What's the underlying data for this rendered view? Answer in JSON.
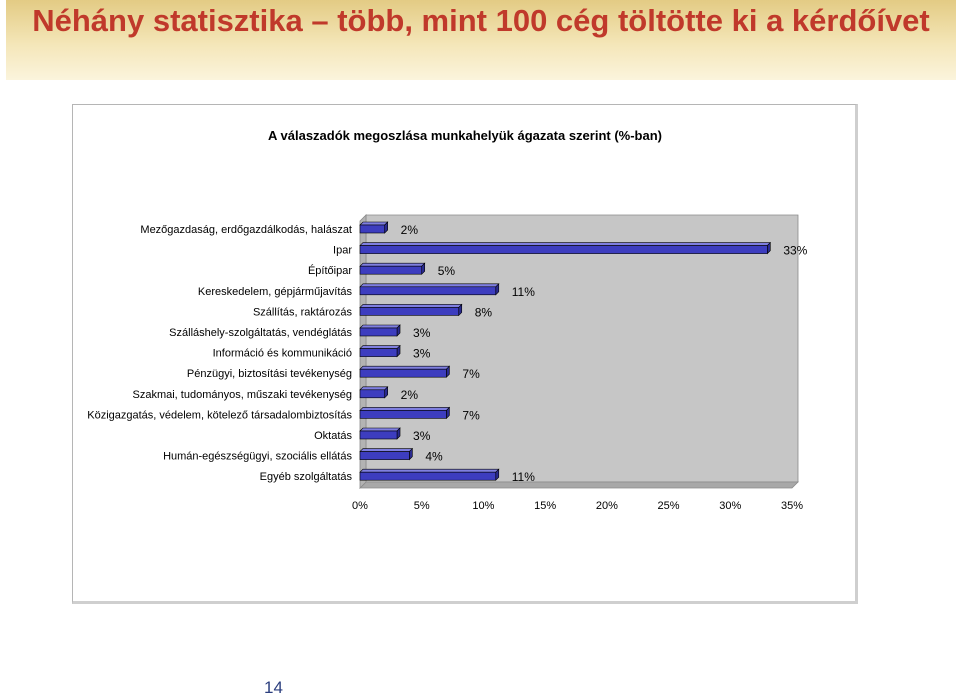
{
  "slide": {
    "title": "Néhány statisztika – több, mint 100 cég töltötte ki a kérdőívet",
    "page_number": "14"
  },
  "colors": {
    "title": "#c0392b",
    "bar_fill": "#3d3dbf",
    "plot_bg": "#c6c6c6"
  },
  "chart_data": {
    "type": "bar",
    "orientation": "horizontal",
    "title": "A válaszadók megoszlása munkahelyük ágazata szerint (%-ban)",
    "categories": [
      "Mezőgazdaság, erdőgazdálkodás, halászat",
      "Ipar",
      "Építőipar",
      "Kereskedelem, gépjárműjavítás",
      "Szállítás, raktározás",
      "Szálláshely-szolgáltatás, vendéglátás",
      "Információ és kommunikáció",
      "Pénzügyi, biztosítási tevékenység",
      "Szakmai, tudományos, műszaki tevékenység",
      "Közigazgatás, védelem, kötelező társadalombiztosítás",
      "Oktatás",
      "Humán-egészségügyi, szociális ellátás",
      "Egyéb szolgáltatás"
    ],
    "values": [
      2,
      33,
      5,
      11,
      8,
      3,
      3,
      7,
      2,
      7,
      3,
      4,
      11
    ],
    "data_labels": [
      "2%",
      "33%",
      "5%",
      "11%",
      "8%",
      "3%",
      "3%",
      "7%",
      "2%",
      "7%",
      "3%",
      "4%",
      "11%"
    ],
    "xlim": [
      0,
      35
    ],
    "x_ticks": [
      "0%",
      "5%",
      "10%",
      "15%",
      "20%",
      "25%",
      "30%",
      "35%"
    ],
    "xlabel": "",
    "ylabel": "",
    "grid": false,
    "legend": false,
    "style": "3d"
  }
}
